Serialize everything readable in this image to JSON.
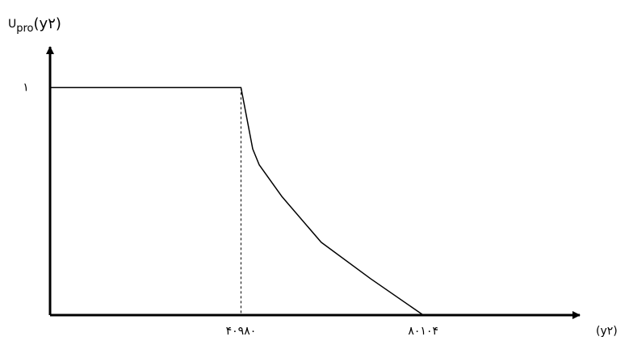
{
  "chart_data": {
    "type": "line",
    "y_label": {
      "main": "U",
      "sub": "pro",
      "arg": "(y۲)"
    },
    "x_label": "(y۲)",
    "x": [
      0,
      40980,
      43500,
      44900,
      49800,
      58200,
      68800,
      80104
    ],
    "values": [
      1,
      1,
      0.73,
      0.66,
      0.52,
      0.32,
      0.16,
      0
    ],
    "color": "#000000",
    "xlim": [
      0,
      100000
    ],
    "ylim": [
      0,
      1.2
    ],
    "xticks": [
      {
        "value": 40980,
        "label": "۴۰۹۸۰"
      },
      {
        "value": 80104,
        "label": "۸۰۱۰۴"
      }
    ],
    "yticks": [
      {
        "value": 1,
        "label": "۱"
      }
    ]
  }
}
